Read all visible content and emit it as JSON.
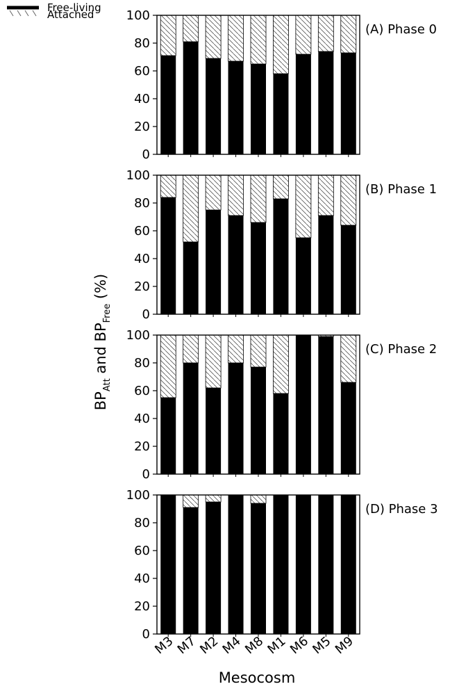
{
  "legend": {
    "items": [
      {
        "key": "free",
        "label": "Free-living"
      },
      {
        "key": "attached",
        "label": "Attached"
      }
    ]
  },
  "axes": {
    "xlabel": "Mesocosm",
    "ylabel_parts": {
      "bp1": "BP",
      "att": "Att",
      "and": " and BP",
      "free": "Free",
      "unit": " (%)"
    }
  },
  "chart_data": {
    "type": "bar",
    "stacked": true,
    "categories": [
      "M3",
      "M7",
      "M2",
      "M4",
      "M8",
      "M1",
      "M6",
      "M5",
      "M9"
    ],
    "ylim": [
      0,
      100
    ],
    "yticks": [
      0,
      20,
      40,
      60,
      80,
      100
    ],
    "panels": [
      {
        "label": "(A) Phase 0",
        "free": [
          71,
          81,
          69,
          67,
          65,
          58,
          72,
          74,
          73
        ]
      },
      {
        "label": "(B) Phase 1",
        "free": [
          84,
          52,
          75,
          71,
          66,
          83,
          55,
          71,
          64
        ]
      },
      {
        "label": "(C) Phase 2",
        "free": [
          55,
          80,
          62,
          80,
          77,
          58,
          100,
          99,
          66
        ]
      },
      {
        "label": "(D) Phase 3",
        "free": [
          100,
          91,
          95,
          100,
          94,
          100,
          100,
          100,
          100
        ]
      }
    ],
    "attached_fills_to": 100
  }
}
